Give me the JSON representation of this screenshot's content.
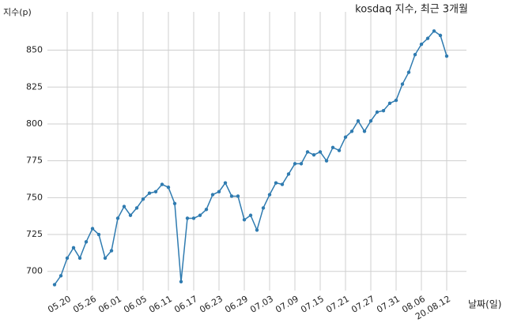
{
  "chart_data": {
    "type": "line",
    "title": "kosdaq 지수, 최근 3개월",
    "y_label": "지수(p)",
    "x_label": "날짜(일)",
    "categories": [
      null,
      null,
      "05.20",
      null,
      null,
      null,
      "05.26",
      null,
      null,
      null,
      "06.01",
      null,
      null,
      null,
      "06.05",
      null,
      null,
      null,
      "06.11",
      null,
      null,
      null,
      "06.17",
      null,
      null,
      null,
      "06.23",
      null,
      null,
      null,
      "06.29",
      null,
      null,
      null,
      "07.03",
      null,
      null,
      null,
      "07.09",
      null,
      null,
      null,
      "07.15",
      null,
      null,
      null,
      "07.21",
      null,
      null,
      null,
      "07.27",
      null,
      null,
      null,
      "07.31",
      null,
      null,
      null,
      "08.06",
      null,
      null,
      null,
      "20.08.12"
    ],
    "series": [
      {
        "name": "kosdaq",
        "color": "#2f7bb0",
        "values": [
          691,
          697,
          709,
          716,
          709,
          720,
          729,
          725,
          709,
          714,
          736,
          744,
          738,
          743,
          749,
          753,
          754,
          759,
          757,
          746,
          693,
          736,
          736,
          738,
          742,
          752,
          754,
          760,
          751,
          751,
          735,
          738,
          728,
          743,
          752,
          760,
          759,
          766,
          773,
          773,
          781,
          779,
          781,
          775,
          784,
          782,
          791,
          795,
          802,
          795,
          802,
          808,
          809,
          814,
          816,
          827,
          835,
          847,
          854,
          858,
          863,
          860,
          846
        ]
      }
    ],
    "ylim": [
      687,
      876
    ],
    "yticks": [
      700,
      725,
      750,
      775,
      800,
      825,
      850
    ],
    "grid": true
  }
}
